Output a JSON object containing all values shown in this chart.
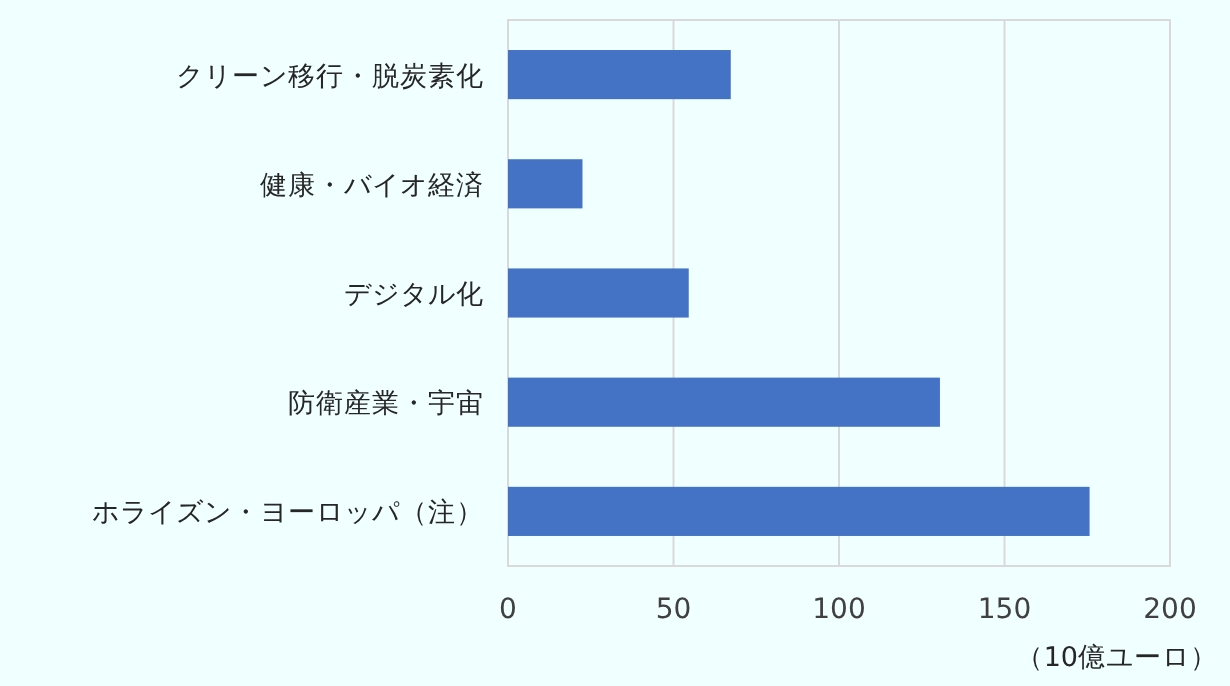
{
  "chart_data": {
    "type": "bar",
    "orientation": "horizontal",
    "categories": [
      "クリーン移行・脱炭素化",
      "健康・バイオ経済",
      "デジタル化",
      "防衛産業・宇宙",
      "ホライズン・ヨーロッパ（注）"
    ],
    "values": [
      67.3,
      22.5,
      54.6,
      130.5,
      175.7
    ],
    "color": "#4472c4",
    "xlim": [
      0,
      200
    ],
    "xticks": [
      0,
      50,
      100,
      150,
      200
    ],
    "xlabel": "（10億ユーロ）",
    "grid": "x"
  }
}
